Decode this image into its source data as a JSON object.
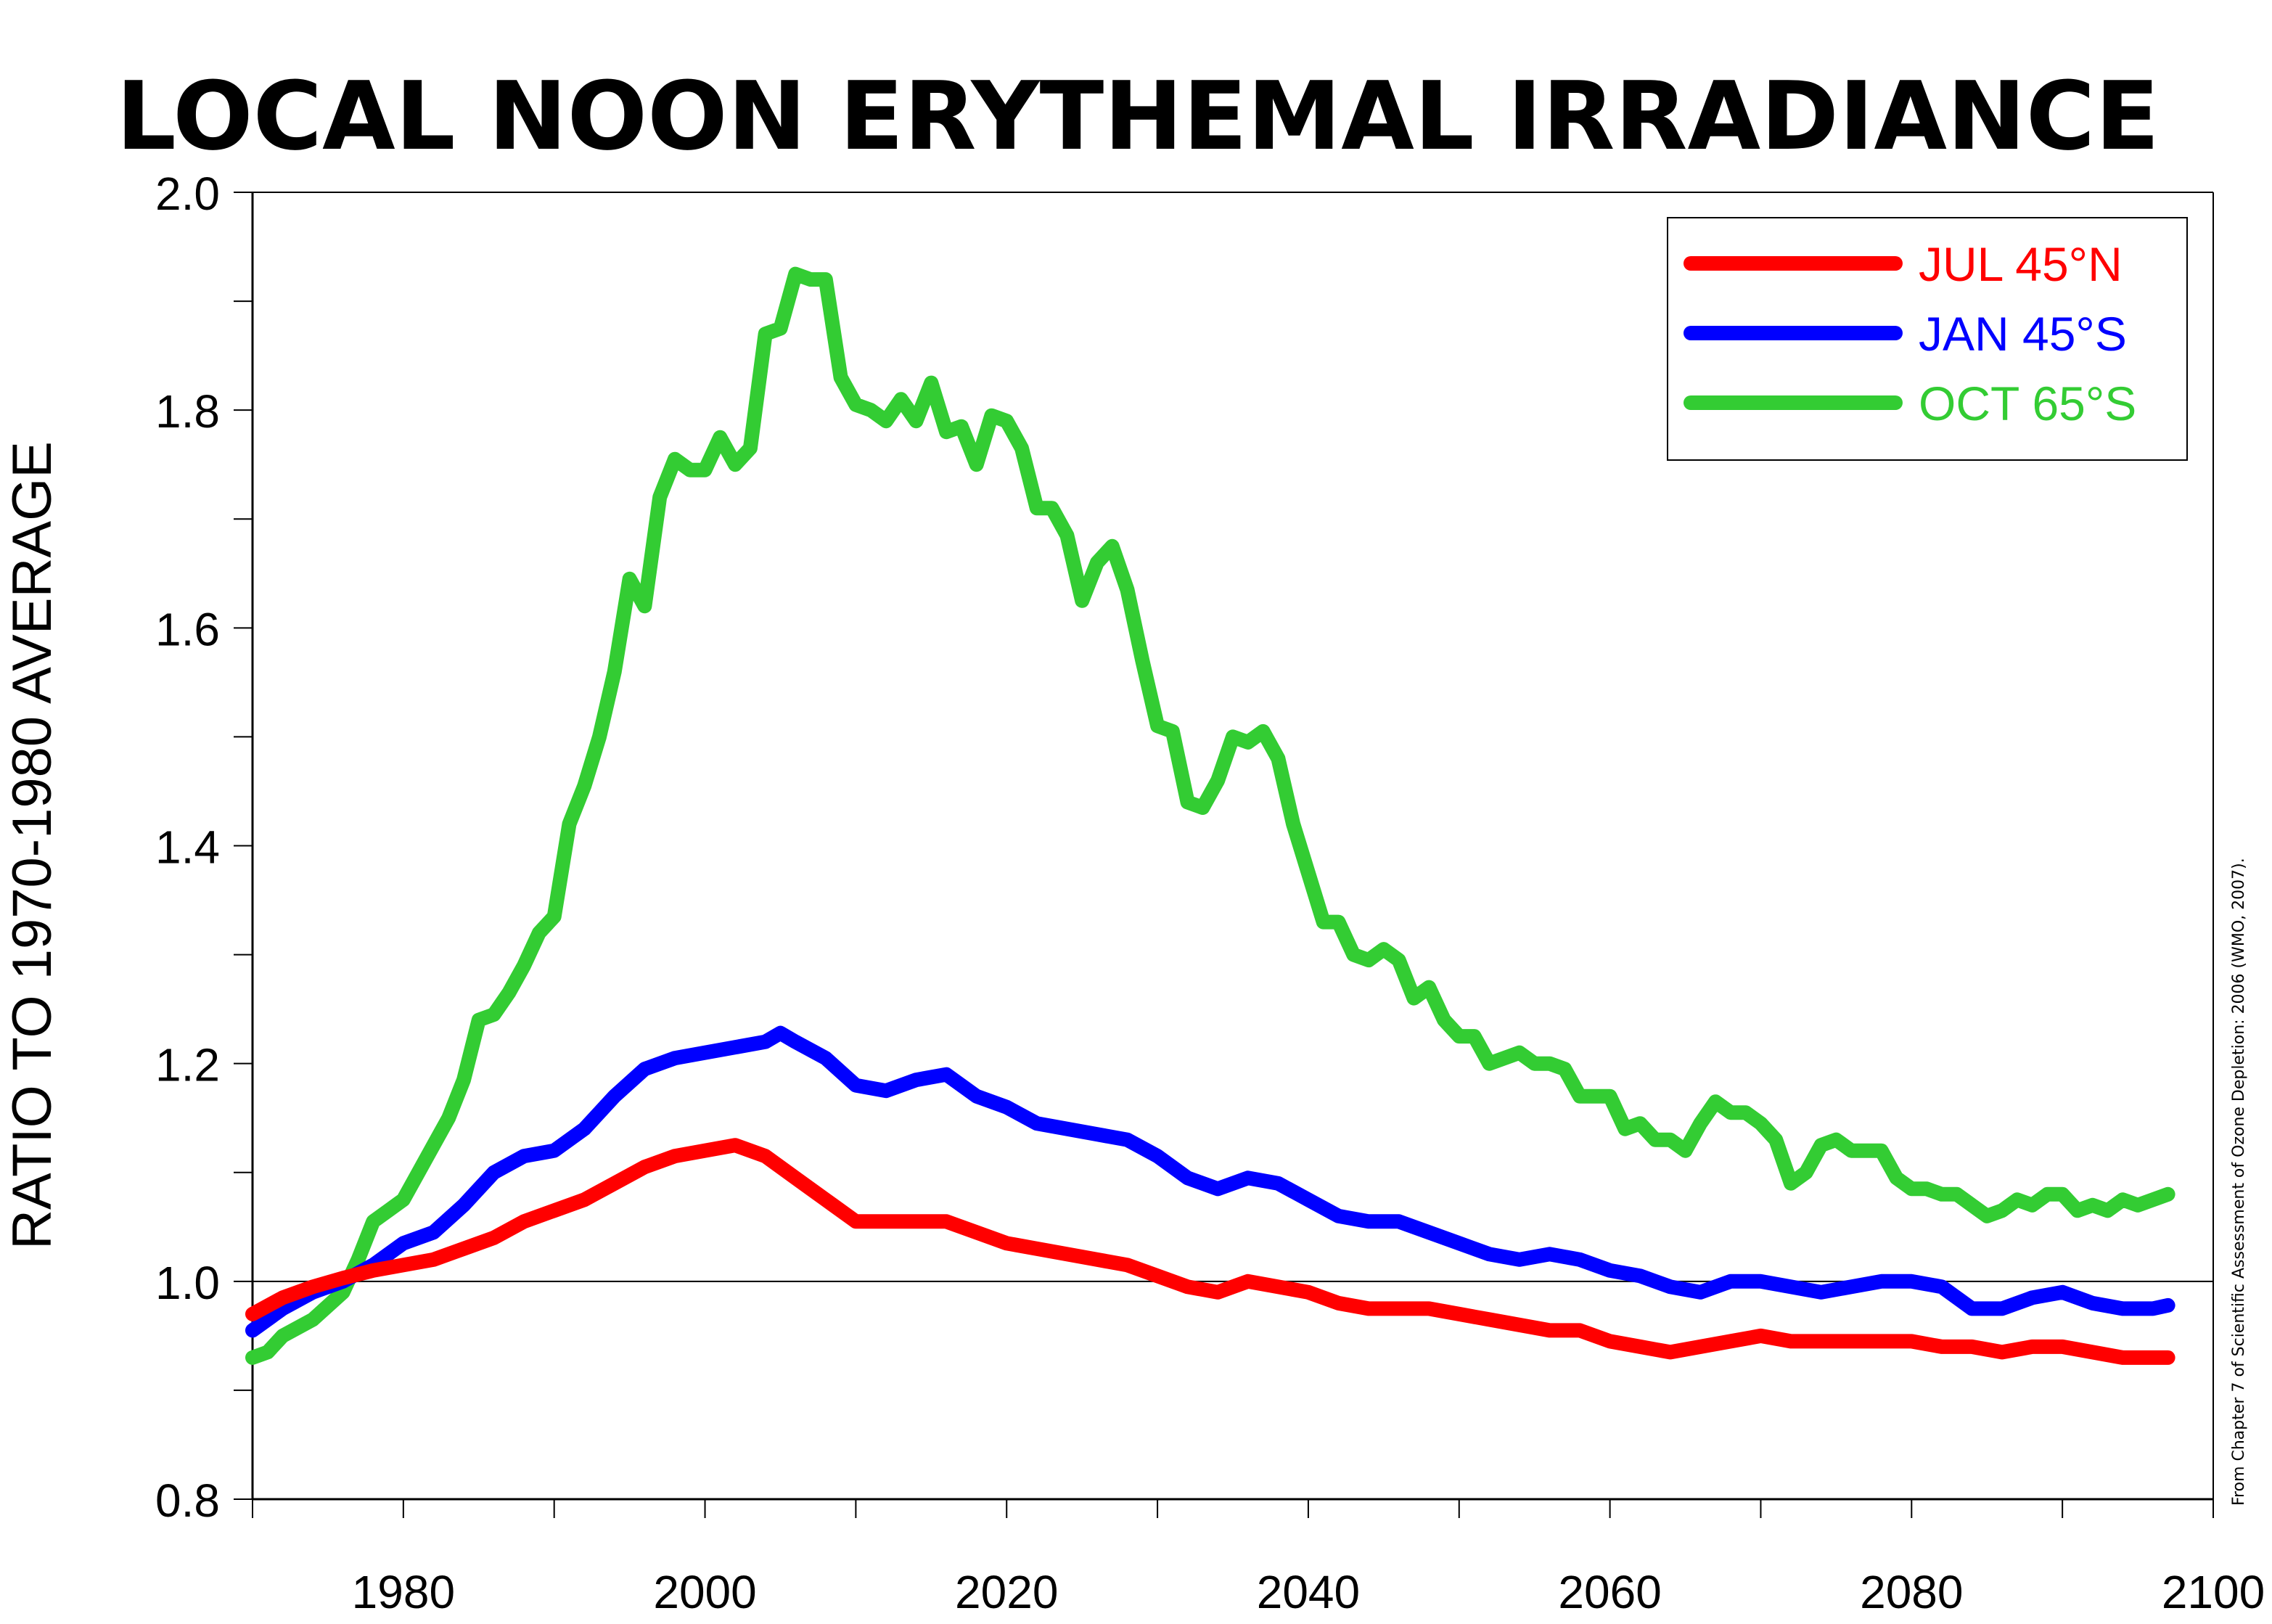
{
  "chart_data": {
    "type": "line",
    "title": "LOCAL NOON ERYTHEMAL IRRADIANCE",
    "ylabel": "RATIO TO 1970-1980 AVERAGE",
    "xlabel": "",
    "xlim": [
      1970,
      2100
    ],
    "ylim": [
      0.8,
      2.0
    ],
    "x_ticks": [
      1980,
      2000,
      2020,
      2040,
      2060,
      2080,
      2100
    ],
    "y_ticks": [
      "0.8",
      "1.0",
      "1.2",
      "1.4",
      "1.6",
      "1.8",
      "2.0"
    ],
    "reference_line": 1.0,
    "grid": false,
    "legend_position": "top-right",
    "source_note": "From Chapter 7 of Scientific Assessment of Ozone Depletion: 2006 (WMO, 2007).",
    "series": [
      {
        "name": "JUL 45°N",
        "color": "#ff0000",
        "x": [
          1970,
          1972,
          1974,
          1976,
          1978,
          1980,
          1982,
          1984,
          1986,
          1988,
          1990,
          1992,
          1994,
          1996,
          1998,
          2000,
          2002,
          2004,
          2006,
          2008,
          2010,
          2012,
          2014,
          2016,
          2018,
          2020,
          2022,
          2024,
          2026,
          2028,
          2030,
          2032,
          2034,
          2036,
          2038,
          2040,
          2042,
          2044,
          2046,
          2048,
          2050,
          2052,
          2054,
          2056,
          2058,
          2060,
          2062,
          2064,
          2066,
          2068,
          2070,
          2072,
          2074,
          2076,
          2078,
          2080,
          2082,
          2084,
          2086,
          2088,
          2090,
          2092,
          2094,
          2096,
          2097
        ],
        "y": [
          0.97,
          0.985,
          0.995,
          1.003,
          1.01,
          1.015,
          1.02,
          1.03,
          1.04,
          1.055,
          1.065,
          1.075,
          1.09,
          1.105,
          1.115,
          1.12,
          1.125,
          1.115,
          1.095,
          1.075,
          1.055,
          1.055,
          1.055,
          1.055,
          1.045,
          1.035,
          1.03,
          1.025,
          1.02,
          1.015,
          1.005,
          0.995,
          0.99,
          1.0,
          0.995,
          0.99,
          0.98,
          0.975,
          0.975,
          0.975,
          0.97,
          0.965,
          0.96,
          0.955,
          0.955,
          0.945,
          0.94,
          0.935,
          0.94,
          0.945,
          0.95,
          0.945,
          0.945,
          0.945,
          0.945,
          0.945,
          0.94,
          0.94,
          0.935,
          0.94,
          0.94,
          0.935,
          0.93,
          0.93,
          0.93
        ]
      },
      {
        "name": "JAN 45°S",
        "color": "#0000ff",
        "x": [
          1970,
          1972,
          1974,
          1976,
          1978,
          1980,
          1982,
          1984,
          1986,
          1988,
          1990,
          1992,
          1994,
          1996,
          1998,
          2000,
          2002,
          2004,
          2005,
          2006,
          2008,
          2010,
          2012,
          2014,
          2016,
          2018,
          2020,
          2022,
          2024,
          2026,
          2028,
          2030,
          2032,
          2034,
          2036,
          2038,
          2040,
          2042,
          2044,
          2046,
          2048,
          2050,
          2052,
          2054,
          2056,
          2058,
          2060,
          2062,
          2064,
          2066,
          2068,
          2070,
          2072,
          2074,
          2076,
          2078,
          2080,
          2082,
          2084,
          2086,
          2088,
          2090,
          2092,
          2094,
          2096,
          2097
        ],
        "y": [
          0.955,
          0.975,
          0.99,
          1.0,
          1.015,
          1.035,
          1.045,
          1.07,
          1.1,
          1.115,
          1.12,
          1.14,
          1.17,
          1.195,
          1.205,
          1.21,
          1.215,
          1.22,
          1.228,
          1.22,
          1.205,
          1.18,
          1.175,
          1.185,
          1.19,
          1.17,
          1.16,
          1.145,
          1.14,
          1.135,
          1.13,
          1.115,
          1.095,
          1.085,
          1.095,
          1.09,
          1.075,
          1.06,
          1.055,
          1.055,
          1.045,
          1.035,
          1.025,
          1.02,
          1.025,
          1.02,
          1.01,
          1.005,
          0.995,
          0.99,
          1.0,
          1.0,
          0.995,
          0.99,
          0.995,
          1.0,
          1.0,
          0.995,
          0.975,
          0.975,
          0.985,
          0.99,
          0.98,
          0.975,
          0.975,
          0.978
        ]
      },
      {
        "name": "OCT 65°S",
        "color": "#33cc33",
        "x": [
          1970,
          1971,
          1972,
          1974,
          1976,
          1977,
          1978,
          1979,
          1980,
          1981,
          1982,
          1983,
          1984,
          1985,
          1986,
          1987,
          1988,
          1989,
          1990,
          1991,
          1992,
          1993,
          1994,
          1995,
          1996,
          1997,
          1998,
          1999,
          2000,
          2001,
          2002,
          2003,
          2004,
          2005,
          2006,
          2007,
          2008,
          2009,
          2010,
          2011,
          2012,
          2013,
          2014,
          2015,
          2016,
          2017,
          2018,
          2019,
          2020,
          2021,
          2022,
          2023,
          2024,
          2025,
          2026,
          2027,
          2028,
          2029,
          2030,
          2031,
          2032,
          2033,
          2034,
          2035,
          2036,
          2037,
          2038,
          2039,
          2040,
          2041,
          2042,
          2043,
          2044,
          2045,
          2046,
          2047,
          2048,
          2049,
          2050,
          2051,
          2052,
          2053,
          2054,
          2055,
          2056,
          2057,
          2058,
          2059,
          2060,
          2061,
          2062,
          2063,
          2064,
          2065,
          2066,
          2067,
          2068,
          2069,
          2070,
          2071,
          2072,
          2073,
          2074,
          2075,
          2076,
          2077,
          2078,
          2079,
          2080,
          2081,
          2082,
          2083,
          2084,
          2085,
          2086,
          2087,
          2088,
          2089,
          2090,
          2091,
          2092,
          2093,
          2094,
          2095,
          2096,
          2097
        ],
        "y": [
          0.93,
          0.935,
          0.95,
          0.965,
          0.99,
          1.02,
          1.055,
          1.065,
          1.075,
          1.1,
          1.125,
          1.15,
          1.185,
          1.24,
          1.245,
          1.265,
          1.29,
          1.32,
          1.335,
          1.42,
          1.455,
          1.5,
          1.56,
          1.645,
          1.62,
          1.72,
          1.755,
          1.745,
          1.745,
          1.775,
          1.75,
          1.765,
          1.87,
          1.875,
          1.925,
          1.92,
          1.92,
          1.83,
          1.805,
          1.8,
          1.79,
          1.81,
          1.79,
          1.825,
          1.78,
          1.785,
          1.75,
          1.795,
          1.79,
          1.765,
          1.71,
          1.71,
          1.685,
          1.625,
          1.66,
          1.675,
          1.635,
          1.57,
          1.51,
          1.505,
          1.44,
          1.435,
          1.46,
          1.5,
          1.495,
          1.505,
          1.48,
          1.42,
          1.375,
          1.33,
          1.33,
          1.3,
          1.295,
          1.305,
          1.295,
          1.26,
          1.27,
          1.24,
          1.225,
          1.225,
          1.2,
          1.205,
          1.21,
          1.2,
          1.2,
          1.195,
          1.17,
          1.17,
          1.17,
          1.14,
          1.145,
          1.13,
          1.13,
          1.12,
          1.145,
          1.165,
          1.155,
          1.155,
          1.145,
          1.13,
          1.09,
          1.1,
          1.125,
          1.13,
          1.12,
          1.12,
          1.12,
          1.095,
          1.085,
          1.085,
          1.08,
          1.08,
          1.07,
          1.06,
          1.065,
          1.075,
          1.07,
          1.08,
          1.08,
          1.065,
          1.07,
          1.065,
          1.075,
          1.07,
          1.075,
          1.08
        ]
      }
    ]
  }
}
